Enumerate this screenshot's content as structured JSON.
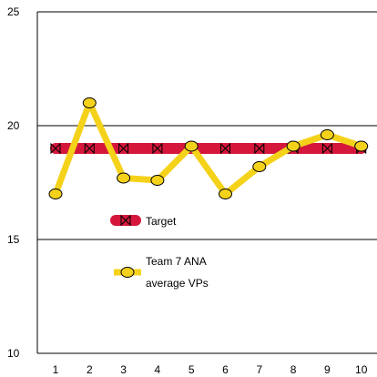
{
  "chart_data": {
    "type": "line",
    "x": [
      1,
      2,
      3,
      4,
      5,
      6,
      7,
      8,
      9,
      10
    ],
    "ylim": [
      10,
      25
    ],
    "yticks": [
      25,
      20,
      15,
      10
    ],
    "grid": "horizontal",
    "series": [
      {
        "name": "Target",
        "values": [
          19,
          19,
          19,
          19,
          19,
          19,
          19,
          19,
          19,
          19
        ],
        "color": "#d5173c",
        "marker": "bowtie"
      },
      {
        "name": "Team 7 ANA average VPs",
        "legend_lines": [
          "Team 7 ANA",
          "average VPs"
        ],
        "values": [
          17.0,
          21.0,
          17.7,
          17.6,
          19.1,
          17.0,
          18.2,
          19.1,
          19.6,
          19.1
        ],
        "color": "#f5d21a",
        "marker": "circle"
      }
    ],
    "legend_position": "center-left inside plot"
  }
}
